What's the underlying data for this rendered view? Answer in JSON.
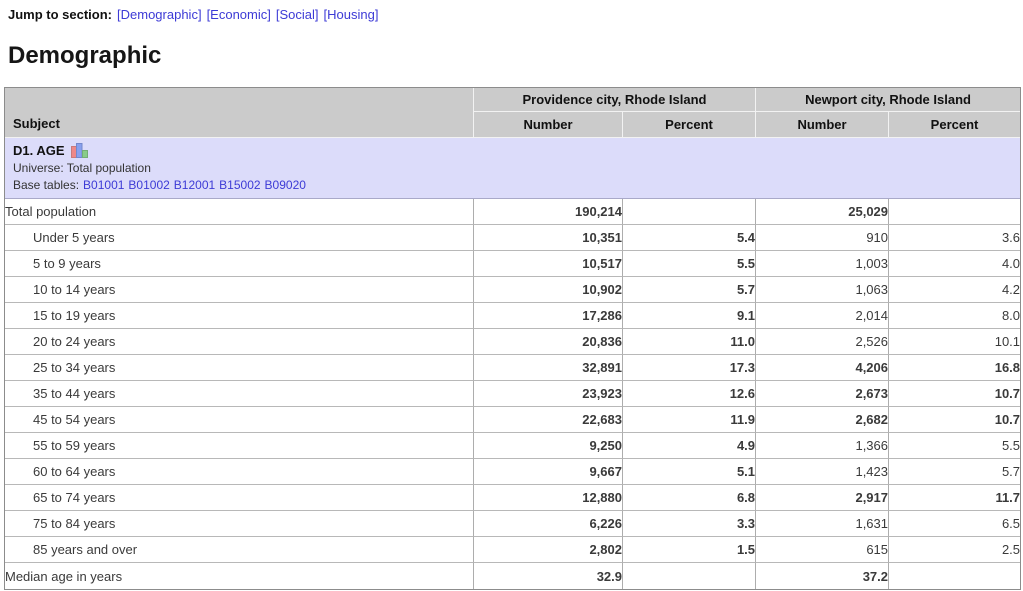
{
  "jump_nav": {
    "label": "Jump to section:",
    "links": [
      "[Demographic]",
      "[Economic]",
      "[Social]",
      "[Housing]"
    ]
  },
  "section": {
    "title": "Demographic"
  },
  "table": {
    "subject_header": "Subject",
    "column_groups": [
      {
        "label": "Providence city, Rhode Island"
      },
      {
        "label": "Newport city, Rhode Island"
      }
    ],
    "sub_headers": {
      "number1": "Number",
      "percent1": "Percent",
      "number2": "Number",
      "percent2": "Percent"
    },
    "section_row": {
      "title": "D1. AGE",
      "icon": "bar-chart-icon",
      "universe": "Universe: Total population",
      "base_tables_label": "Base tables:",
      "base_tables": [
        "B01001",
        "B01002",
        "B12001",
        "B15002",
        "B09020"
      ]
    },
    "rows": [
      {
        "label": "Total population",
        "indent": false,
        "pn": "190,214",
        "pp": "",
        "nn": "25,029",
        "np": "",
        "p_bold": true,
        "n_bold": true
      },
      {
        "label": "Under 5 years",
        "indent": true,
        "pn": "10,351",
        "pp": "5.4",
        "nn": "910",
        "np": "3.6",
        "p_bold": true,
        "n_bold": false
      },
      {
        "label": "5 to 9 years",
        "indent": true,
        "pn": "10,517",
        "pp": "5.5",
        "nn": "1,003",
        "np": "4.0",
        "p_bold": true,
        "n_bold": false
      },
      {
        "label": "10 to 14 years",
        "indent": true,
        "pn": "10,902",
        "pp": "5.7",
        "nn": "1,063",
        "np": "4.2",
        "p_bold": true,
        "n_bold": false
      },
      {
        "label": "15 to 19 years",
        "indent": true,
        "pn": "17,286",
        "pp": "9.1",
        "nn": "2,014",
        "np": "8.0",
        "p_bold": true,
        "n_bold": false
      },
      {
        "label": "20 to 24 years",
        "indent": true,
        "pn": "20,836",
        "pp": "11.0",
        "nn": "2,526",
        "np": "10.1",
        "p_bold": true,
        "n_bold": false
      },
      {
        "label": "25 to 34 years",
        "indent": true,
        "pn": "32,891",
        "pp": "17.3",
        "nn": "4,206",
        "np": "16.8",
        "p_bold": true,
        "n_bold": true
      },
      {
        "label": "35 to 44 years",
        "indent": true,
        "pn": "23,923",
        "pp": "12.6",
        "nn": "2,673",
        "np": "10.7",
        "p_bold": true,
        "n_bold": true
      },
      {
        "label": "45 to 54 years",
        "indent": true,
        "pn": "22,683",
        "pp": "11.9",
        "nn": "2,682",
        "np": "10.7",
        "p_bold": true,
        "n_bold": true
      },
      {
        "label": "55 to 59 years",
        "indent": true,
        "pn": "9,250",
        "pp": "4.9",
        "nn": "1,366",
        "np": "5.5",
        "p_bold": true,
        "n_bold": false
      },
      {
        "label": "60 to 64 years",
        "indent": true,
        "pn": "9,667",
        "pp": "5.1",
        "nn": "1,423",
        "np": "5.7",
        "p_bold": true,
        "n_bold": false
      },
      {
        "label": "65 to 74 years",
        "indent": true,
        "pn": "12,880",
        "pp": "6.8",
        "nn": "2,917",
        "np": "11.7",
        "p_bold": true,
        "n_bold": true
      },
      {
        "label": "75 to 84 years",
        "indent": true,
        "pn": "6,226",
        "pp": "3.3",
        "nn": "1,631",
        "np": "6.5",
        "p_bold": true,
        "n_bold": false
      },
      {
        "label": "85 years and over",
        "indent": true,
        "pn": "2,802",
        "pp": "1.5",
        "nn": "615",
        "np": "2.5",
        "p_bold": true,
        "n_bold": false
      },
      {
        "label": "Median age in years",
        "indent": false,
        "pn": "32.9",
        "pp": "",
        "nn": "37.2",
        "np": "",
        "p_bold": true,
        "n_bold": true
      }
    ]
  },
  "colors": {
    "link": "#3d3bd6",
    "header_bg": "#cbcbcb",
    "section_row_bg": "#dcdcfa",
    "bar_icon_bars": [
      "#ee8888",
      "#88a0ee",
      "#88cc88"
    ]
  }
}
